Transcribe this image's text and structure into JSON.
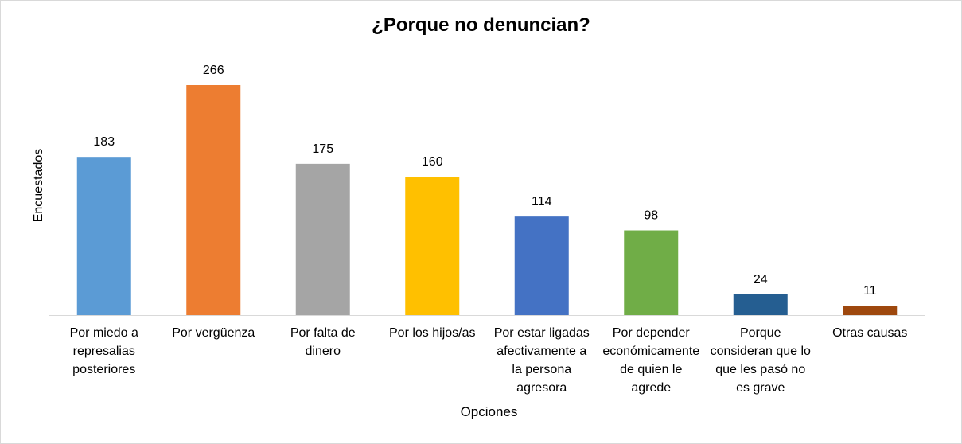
{
  "chart_data": {
    "type": "bar",
    "title": "¿Porque no denuncian?",
    "xlabel": "Opciones",
    "ylabel": "Encuestados",
    "ylim": [
      0,
      266
    ],
    "grid": false,
    "legend": "none",
    "categories": [
      "Por miedo a\nrepresalias\nposteriores",
      "Por vergüenza",
      "Por falta de\ndinero",
      "Por los hijos/as",
      "Por estar ligadas\nafectivamente a\nla persona\nagresora",
      "Por depender\neconómicamente\nde quien le\nagrede",
      "Porque\nconsideran que lo\nque les pasó no\nes grave",
      "Otras causas"
    ],
    "values": [
      183,
      266,
      175,
      160,
      114,
      98,
      24,
      11
    ],
    "colors": [
      "#5b9bd5",
      "#ed7d31",
      "#a5a5a5",
      "#ffc000",
      "#4472c4",
      "#70ad47",
      "#255e91",
      "#9e480e"
    ]
  }
}
